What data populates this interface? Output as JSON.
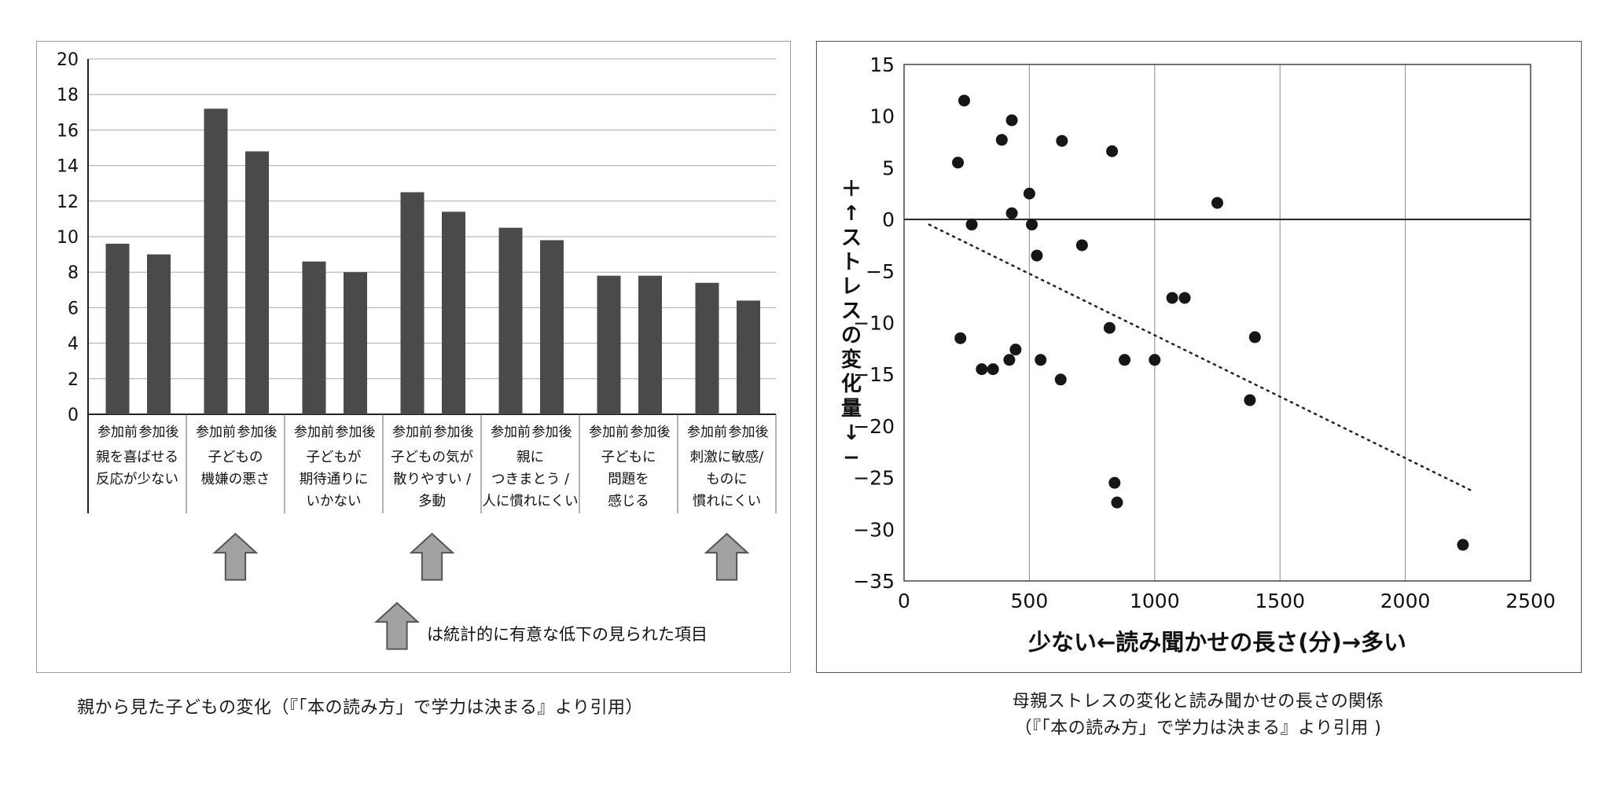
{
  "figure1": {
    "caption": "親から見た子どもの変化（『「本の読み方」で学力は決まる』より引用）"
  },
  "figure2": {
    "caption_line1": "母親ストレスの変化と読み聞かせの長さの関係",
    "caption_line2": "（『「本の読み方」で学力は決まる』より引用 )"
  },
  "chart_data": [
    {
      "type": "bar",
      "title": "親から見た子どもの変化",
      "ylim": [
        0,
        20
      ],
      "ytick_step": 2,
      "bar_color": "#4a4a4a",
      "grid": "horizontal gridlines every 2 units",
      "pair_labels": [
        "参加前",
        "参加後"
      ],
      "categories": [
        "親を喜ばせる\n反応が少ない",
        "子どもの\n機嫌の悪さ",
        "子どもが\n期待通りに\nいかない",
        "子どもの気が\n散りやすい /\n多動",
        "親に\nつきまとう /\n人に慣れにくい",
        "子どもに\n問題を\n感じる",
        "刺激に敏感/\nものに\n慣れにくい"
      ],
      "series": [
        {
          "name": "参加前",
          "values": [
            9.6,
            17.2,
            8.6,
            12.5,
            10.5,
            7.8,
            7.4
          ]
        },
        {
          "name": "参加後",
          "values": [
            9.0,
            14.8,
            8.0,
            11.4,
            9.8,
            7.8,
            6.4
          ]
        }
      ],
      "significant_categories": [
        1,
        3,
        6
      ],
      "legend_icon": "up-arrow-icon",
      "legend_note": "は統計的に有意な低下の見られた項目"
    },
    {
      "type": "scatter",
      "title": "母親ストレスの変化と読み聞かせの長さの関係",
      "xlabel": "少ない←読み聞かせの長さ(分)→多い",
      "ylabel": "＋↑ストレスの変化量↓−",
      "xlim": [
        0,
        2500
      ],
      "ylim": [
        -35,
        15
      ],
      "xticks": [
        0,
        500,
        1000,
        1500,
        2000,
        2500
      ],
      "yticks": [
        15,
        10,
        5,
        0,
        -5,
        -10,
        -15,
        -20,
        -25,
        -30,
        -35
      ],
      "grid": "vertical gridlines at 500-unit intervals; solid dark line at y=0",
      "point_color": "#161616",
      "points": [
        [
          215,
          5.5
        ],
        [
          240,
          11.5
        ],
        [
          270,
          -0.5
        ],
        [
          225,
          -11.5
        ],
        [
          310,
          -14.5
        ],
        [
          355,
          -14.5
        ],
        [
          390,
          7.7
        ],
        [
          430,
          9.6
        ],
        [
          430,
          0.6
        ],
        [
          445,
          -12.6
        ],
        [
          420,
          -13.6
        ],
        [
          500,
          2.5
        ],
        [
          510,
          -0.5
        ],
        [
          530,
          -3.5
        ],
        [
          545,
          -13.6
        ],
        [
          630,
          7.6
        ],
        [
          625,
          -15.5
        ],
        [
          710,
          -2.5
        ],
        [
          830,
          6.6
        ],
        [
          820,
          -10.5
        ],
        [
          840,
          -25.5
        ],
        [
          850,
          -27.4
        ],
        [
          880,
          -13.6
        ],
        [
          1000,
          -13.6
        ],
        [
          1070,
          -7.6
        ],
        [
          1120,
          -7.6
        ],
        [
          1250,
          1.6
        ],
        [
          1380,
          -17.5
        ],
        [
          1400,
          -11.4
        ],
        [
          2230,
          -31.5
        ]
      ],
      "trendline": {
        "style": "dotted",
        "from": [
          100,
          -0.5
        ],
        "to": [
          2260,
          -26.2
        ]
      }
    }
  ]
}
